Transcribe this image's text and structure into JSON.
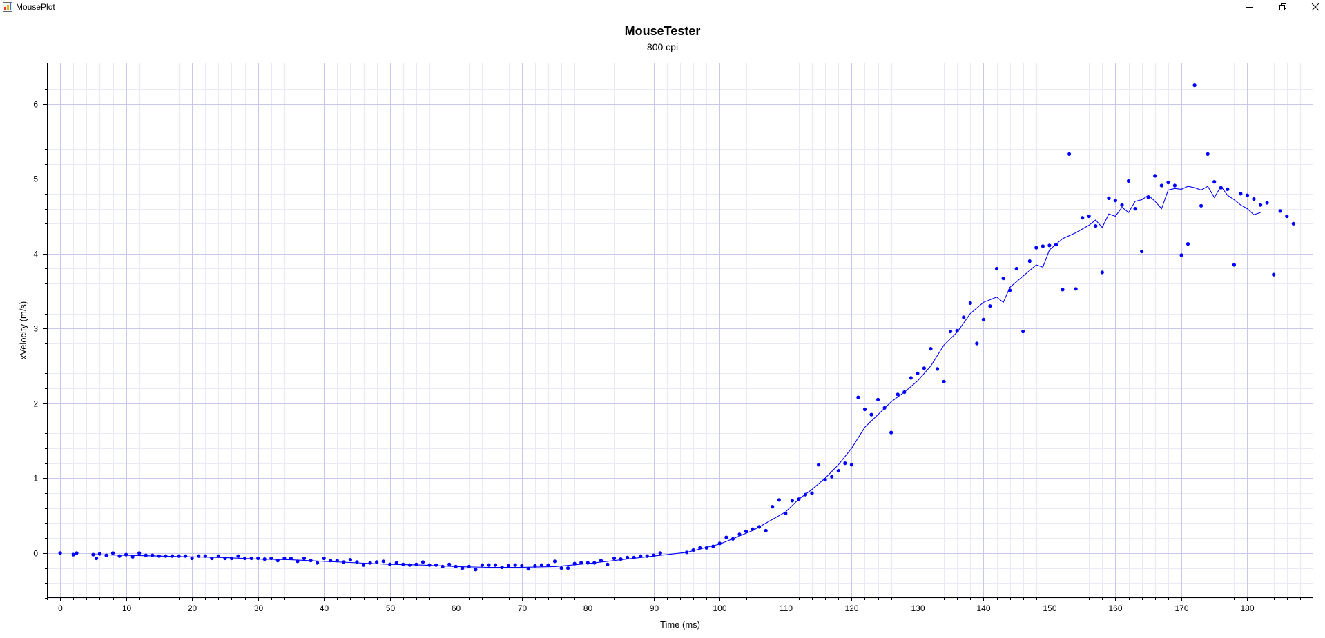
{
  "window": {
    "title": "MousePlot",
    "minimize_icon": "minimize-icon",
    "restore_icon": "restore-icon",
    "close_icon": "close-icon"
  },
  "chart_data": {
    "type": "scatter",
    "title": "MouseTester",
    "subtitle": "800 cpi",
    "xlabel": "Time (ms)",
    "ylabel": "xVelocity (m/s)",
    "xlim": [
      -2,
      190
    ],
    "ylim": [
      -0.6,
      6.55
    ],
    "x_ticks": [
      0,
      10,
      20,
      30,
      40,
      50,
      60,
      70,
      80,
      90,
      100,
      110,
      120,
      130,
      140,
      150,
      160,
      170,
      180
    ],
    "y_ticks": [
      0,
      1,
      2,
      3,
      4,
      5,
      6
    ],
    "grid": true,
    "colors": {
      "series": "#0000ff",
      "major_grid": "#c8c8ee",
      "minor_grid": "#eaeaf6"
    },
    "series": [
      {
        "style": "points",
        "x": [
          0,
          2,
          2.5,
          5,
          5.5,
          6,
          7,
          8,
          9,
          10,
          11,
          12,
          13,
          14,
          15,
          16,
          17,
          18,
          19,
          20,
          21,
          22,
          23,
          24,
          25,
          26,
          27,
          28,
          29,
          30,
          31,
          32,
          33,
          34,
          35,
          36,
          37,
          38,
          39,
          40,
          41,
          42,
          43,
          44,
          45,
          46,
          47,
          48,
          49,
          50,
          51,
          52,
          53,
          54,
          55,
          56,
          57,
          58,
          59,
          60,
          61,
          62,
          63,
          64,
          65,
          66,
          67,
          68,
          69,
          70,
          71,
          72,
          73,
          74,
          75,
          76,
          77,
          78,
          79,
          80,
          81,
          82,
          83,
          84,
          85,
          86,
          87,
          88,
          89,
          90,
          91,
          95,
          96,
          97,
          98,
          99,
          100,
          101,
          102,
          103,
          104,
          105,
          106,
          107,
          108,
          109,
          110,
          111,
          112,
          113,
          114,
          115,
          116,
          117,
          118,
          119,
          120,
          121,
          122,
          123,
          124,
          125,
          126,
          127,
          128,
          129,
          130,
          131,
          132,
          133,
          134,
          135,
          136,
          137,
          138,
          139,
          140,
          141,
          142,
          143,
          144,
          145,
          146,
          147,
          148,
          149,
          150,
          151,
          152,
          153,
          154,
          155,
          156,
          157,
          158,
          159,
          160,
          161,
          162,
          163,
          164,
          165,
          166,
          167,
          168,
          169,
          170,
          171,
          172,
          173,
          174,
          175,
          176,
          177,
          178,
          179,
          180,
          181,
          182,
          183,
          184,
          185,
          186,
          187
        ],
        "y": [
          0,
          -0.02,
          0,
          -0.02,
          -0.07,
          -0.01,
          -0.03,
          0,
          -0.04,
          -0.02,
          -0.05,
          0,
          -0.03,
          -0.03,
          -0.04,
          -0.04,
          -0.04,
          -0.04,
          -0.04,
          -0.07,
          -0.04,
          -0.04,
          -0.07,
          -0.04,
          -0.07,
          -0.07,
          -0.04,
          -0.07,
          -0.07,
          -0.07,
          -0.08,
          -0.07,
          -0.1,
          -0.07,
          -0.07,
          -0.11,
          -0.07,
          -0.1,
          -0.13,
          -0.07,
          -0.1,
          -0.1,
          -0.12,
          -0.09,
          -0.12,
          -0.16,
          -0.13,
          -0.12,
          -0.11,
          -0.15,
          -0.13,
          -0.15,
          -0.16,
          -0.15,
          -0.12,
          -0.16,
          -0.16,
          -0.18,
          -0.15,
          -0.18,
          -0.2,
          -0.18,
          -0.22,
          -0.16,
          -0.16,
          -0.16,
          -0.19,
          -0.17,
          -0.16,
          -0.17,
          -0.21,
          -0.17,
          -0.16,
          -0.16,
          -0.11,
          -0.2,
          -0.2,
          -0.14,
          -0.13,
          -0.13,
          -0.13,
          -0.1,
          -0.15,
          -0.07,
          -0.08,
          -0.06,
          -0.06,
          -0.04,
          -0.04,
          -0.03,
          0,
          0.01,
          0.04,
          0.07,
          0.07,
          0.09,
          0.13,
          0.21,
          0.19,
          0.25,
          0.29,
          0.32,
          0.35,
          0.3,
          0.62,
          0.71,
          0.53,
          0.7,
          0.72,
          0.78,
          0.8,
          1.18,
          0.98,
          1.02,
          1.1,
          1.2,
          1.18,
          2.08,
          1.92,
          1.85,
          2.05,
          1.94,
          1.61,
          2.12,
          2.15,
          2.34,
          2.4,
          2.47,
          2.73,
          2.46,
          2.29,
          2.96,
          2.97,
          3.15,
          3.34,
          2.8,
          3.12,
          3.3,
          3.8,
          3.67,
          3.51,
          3.8,
          2.96,
          3.9,
          4.08,
          4.1,
          4.11,
          4.12,
          3.52,
          5.33,
          3.53,
          4.48,
          4.5,
          4.37,
          3.75,
          4.74,
          4.71,
          4.65,
          4.97,
          4.6,
          4.03,
          4.75,
          5.04,
          4.91,
          4.95,
          4.91,
          3.98,
          4.13,
          6.25,
          4.64,
          5.33,
          4.96,
          4.88,
          4.86,
          3.85,
          4.8,
          4.78,
          4.73,
          4.65,
          4.68,
          3.72,
          4.57,
          4.5,
          4.4
        ]
      },
      {
        "style": "line",
        "x": [
          5,
          10,
          15,
          20,
          25,
          30,
          35,
          40,
          45,
          50,
          55,
          60,
          65,
          70,
          75,
          80,
          85,
          90,
          95,
          100,
          105,
          107,
          110,
          112,
          114,
          116,
          118,
          120,
          122,
          124,
          126,
          128,
          130,
          132,
          134,
          136,
          138,
          140,
          142,
          143,
          144,
          146,
          148,
          149,
          150,
          152,
          154,
          156,
          157,
          158,
          159,
          160,
          161,
          162,
          163,
          164,
          165,
          166,
          167,
          168,
          169,
          170,
          171,
          172,
          173,
          174,
          175,
          176,
          177,
          178,
          179,
          180,
          181,
          182
        ],
        "y": [
          -0.02,
          -0.03,
          -0.04,
          -0.05,
          -0.06,
          -0.08,
          -0.09,
          -0.11,
          -0.13,
          -0.15,
          -0.16,
          -0.18,
          -0.19,
          -0.19,
          -0.18,
          -0.14,
          -0.09,
          -0.04,
          0.01,
          0.12,
          0.3,
          0.4,
          0.55,
          0.72,
          0.85,
          1.0,
          1.18,
          1.4,
          1.68,
          1.85,
          2.02,
          2.15,
          2.3,
          2.5,
          2.78,
          2.95,
          3.2,
          3.35,
          3.42,
          3.35,
          3.55,
          3.7,
          3.85,
          3.82,
          4.05,
          4.2,
          4.28,
          4.38,
          4.45,
          4.35,
          4.53,
          4.5,
          4.62,
          4.55,
          4.7,
          4.72,
          4.78,
          4.7,
          4.6,
          4.85,
          4.87,
          4.86,
          4.9,
          4.88,
          4.85,
          4.9,
          4.75,
          4.9,
          4.78,
          4.72,
          4.65,
          4.6,
          4.52,
          4.55
        ]
      }
    ]
  }
}
